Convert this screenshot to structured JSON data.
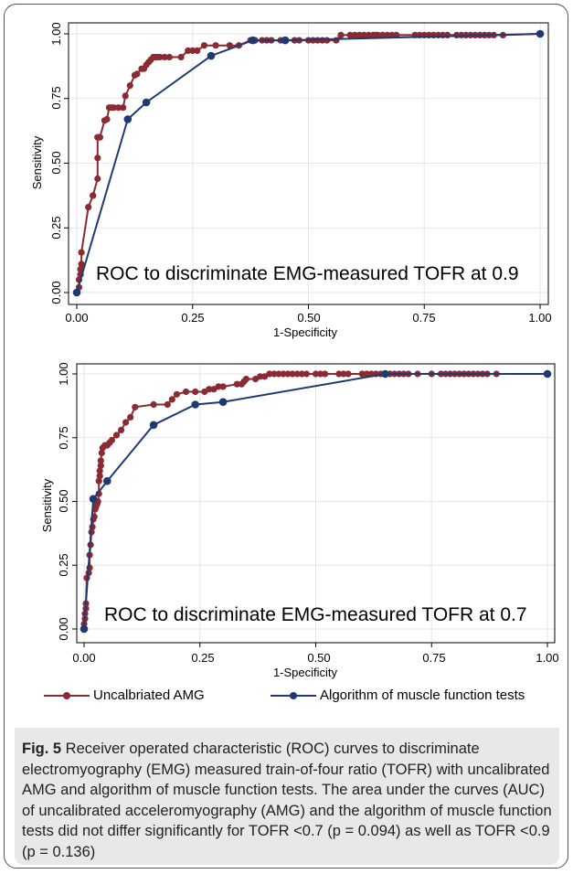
{
  "charts": [
    {
      "annotation": "ROC to discriminate EMG-measured TOFR at 0.9",
      "xlabel": "1-Specificity",
      "ylabel": "Sensitivity",
      "xticks": [
        "0.00",
        "0.25",
        "0.50",
        "0.75",
        "1.00"
      ],
      "yticks": [
        "0.00",
        "0.25",
        "0.50",
        "0.75",
        "1.00"
      ]
    },
    {
      "annotation": "ROC to discriminate EMG-measured TOFR at 0.7",
      "xlabel": "1-Specificity",
      "ylabel": "Sensitivity",
      "xticks": [
        "0.00",
        "0.25",
        "0.50",
        "0.75",
        "1.00"
      ],
      "yticks": [
        "0.00",
        "0.25",
        "0.50",
        "0.75",
        "1.00"
      ]
    }
  ],
  "legend": {
    "amg_label": "Uncalbriated AMG",
    "alg_label": "Algorithm of muscle function tests"
  },
  "caption": {
    "fig": "Fig. 5",
    "text": " Receiver operated characteristic (ROC) curves to discriminate electromyography (EMG) measured train-of-four ratio (TOFR) with uncalibrated AMG and algorithm of muscle function tests. The area under the curves (AUC) of uncalibrated acceleromyography (AMG) and the algorithm of muscle function tests did not differ significantly for TOFR <0.7 (p = 0.094) as well as TOFR <0.9 (p = 0.136)"
  },
  "colors": {
    "amg": "#8c2a33",
    "alg": "#1f3a73",
    "grid": "#e6e6e6",
    "box": "#000000"
  },
  "chart_data": [
    {
      "type": "line",
      "xlabel": "1-Specificity",
      "ylabel": "Sensitivity",
      "xlim": [
        0,
        1
      ],
      "ylim": [
        0,
        1
      ],
      "grid": true,
      "series": [
        {
          "name": "Uncalbriated AMG",
          "x": [
            0,
            0.005,
            0.005,
            0.008,
            0.008,
            0.01,
            0.01,
            0.025,
            0.035,
            0.035,
            0.045,
            0.045,
            0.045,
            0.045,
            0.05,
            0.05,
            0.06,
            0.065,
            0.07,
            0.075,
            0.08,
            0.09,
            0.1,
            0.105,
            0.115,
            0.125,
            0.13,
            0.14,
            0.145,
            0.15,
            0.155,
            0.16,
            0.165,
            0.17,
            0.175,
            0.18,
            0.19,
            0.2,
            0.225,
            0.24,
            0.25,
            0.26,
            0.275,
            0.3,
            0.33,
            0.35,
            0.375,
            0.385,
            0.4,
            0.41,
            0.42,
            0.44,
            0.45,
            0.47,
            0.48,
            0.5,
            0.51,
            0.52,
            0.53,
            0.54,
            0.56,
            0.57,
            0.59,
            0.6,
            0.61,
            0.62,
            0.63,
            0.64,
            0.645,
            0.65,
            0.66,
            0.67,
            0.68,
            0.69,
            0.73,
            0.74,
            0.75,
            0.76,
            0.77,
            0.78,
            0.79,
            0.8,
            0.82,
            0.83,
            0.84,
            0.85,
            0.86,
            0.87,
            0.88,
            0.89,
            0.9,
            0.92,
            1.0
          ],
          "y": [
            0,
            0.02,
            0.05,
            0.07,
            0.09,
            0.11,
            0.155,
            0.33,
            0.375,
            0.375,
            0.44,
            0.52,
            0.6,
            0.6,
            0.6,
            0.6,
            0.665,
            0.67,
            0.715,
            0.715,
            0.715,
            0.715,
            0.715,
            0.76,
            0.8,
            0.84,
            0.845,
            0.865,
            0.865,
            0.88,
            0.89,
            0.9,
            0.91,
            0.91,
            0.91,
            0.91,
            0.91,
            0.91,
            0.91,
            0.935,
            0.935,
            0.935,
            0.955,
            0.955,
            0.955,
            0.955,
            0.975,
            0.975,
            0.975,
            0.975,
            0.975,
            0.975,
            0.975,
            0.975,
            0.975,
            0.975,
            0.975,
            0.975,
            0.975,
            0.975,
            0.975,
            0.995,
            0.995,
            0.995,
            0.995,
            0.995,
            0.995,
            0.995,
            0.995,
            0.995,
            0.995,
            0.995,
            0.995,
            0.995,
            0.995,
            0.995,
            0.995,
            0.995,
            0.995,
            0.995,
            0.995,
            0.995,
            0.995,
            0.995,
            0.995,
            0.995,
            0.995,
            0.995,
            0.995,
            0.995,
            0.995,
            0.995,
            1.0
          ]
        },
        {
          "name": "Algorithm of muscle function tests",
          "x": [
            0,
            0.11,
            0.15,
            0.29,
            0.38,
            0.45,
            1.0
          ],
          "y": [
            0,
            0.67,
            0.735,
            0.915,
            0.975,
            0.975,
            1.0
          ]
        }
      ]
    },
    {
      "type": "line",
      "xlabel": "1-Specificity",
      "ylabel": "Sensitivity",
      "xlim": [
        0,
        1
      ],
      "ylim": [
        0,
        1
      ],
      "grid": true,
      "series": [
        {
          "name": "Uncalbriated AMG",
          "x": [
            0,
            0,
            0.002,
            0.002,
            0.004,
            0.004,
            0.006,
            0.01,
            0.012,
            0.012,
            0.014,
            0.016,
            0.018,
            0.02,
            0.022,
            0.024,
            0.026,
            0.028,
            0.03,
            0.032,
            0.032,
            0.034,
            0.034,
            0.036,
            0.036,
            0.038,
            0.04,
            0.045,
            0.05,
            0.055,
            0.06,
            0.07,
            0.08,
            0.09,
            0.1,
            0.11,
            0.15,
            0.18,
            0.19,
            0.2,
            0.22,
            0.24,
            0.26,
            0.27,
            0.28,
            0.29,
            0.3,
            0.33,
            0.34,
            0.345,
            0.35,
            0.37,
            0.38,
            0.39,
            0.4,
            0.41,
            0.42,
            0.43,
            0.44,
            0.45,
            0.46,
            0.47,
            0.48,
            0.5,
            0.51,
            0.52,
            0.55,
            0.56,
            0.57,
            0.6,
            0.61,
            0.62,
            0.63,
            0.64,
            0.65,
            0.66,
            0.67,
            0.68,
            0.69,
            0.7,
            0.72,
            0.75,
            0.77,
            0.78,
            0.79,
            0.8,
            0.81,
            0.82,
            0.83,
            0.84,
            0.85,
            0.86,
            0.87,
            0.89,
            1.0
          ],
          "y": [
            0,
            0.02,
            0.04,
            0.06,
            0.08,
            0.1,
            0.2,
            0.22,
            0.24,
            0.29,
            0.33,
            0.38,
            0.4,
            0.43,
            0.44,
            0.47,
            0.48,
            0.49,
            0.5,
            0.53,
            0.58,
            0.6,
            0.62,
            0.64,
            0.66,
            0.69,
            0.71,
            0.72,
            0.72,
            0.73,
            0.74,
            0.76,
            0.78,
            0.81,
            0.83,
            0.87,
            0.88,
            0.88,
            0.9,
            0.92,
            0.93,
            0.93,
            0.93,
            0.94,
            0.94,
            0.95,
            0.95,
            0.96,
            0.96,
            0.97,
            0.98,
            0.98,
            0.99,
            0.99,
            1.0,
            1.0,
            1.0,
            1.0,
            1.0,
            1.0,
            1.0,
            1.0,
            1.0,
            1.0,
            1.0,
            1.0,
            1.0,
            1.0,
            1.0,
            1.0,
            1.0,
            1.0,
            1.0,
            1.0,
            1.0,
            1.0,
            1.0,
            1.0,
            1.0,
            1.0,
            1.0,
            1.0,
            1.0,
            1.0,
            1.0,
            1.0,
            1.0,
            1.0,
            1.0,
            1.0,
            1.0,
            1.0,
            1.0,
            1.0,
            1.0
          ]
        },
        {
          "name": "Algorithm of muscle function tests",
          "x": [
            0,
            0.02,
            0.05,
            0.15,
            0.24,
            0.3,
            0.65,
            1.0
          ],
          "y": [
            0,
            0.51,
            0.58,
            0.8,
            0.88,
            0.89,
            1.0,
            1.0
          ]
        }
      ]
    }
  ]
}
